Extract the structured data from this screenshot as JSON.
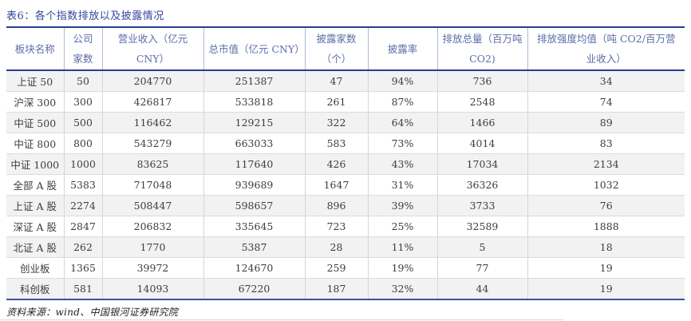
{
  "title": "表6：各个指数排放以及披露情况",
  "table": {
    "columns": [
      {
        "label": "板块名称"
      },
      {
        "label": "公司家数"
      },
      {
        "label": "营业收入（亿元 CNY）"
      },
      {
        "label": "总市值（亿元 CNY）"
      },
      {
        "label": "披露家数（个）"
      },
      {
        "label": "披露率"
      },
      {
        "label": "排放总量（百万吨 CO2)"
      },
      {
        "label": "排放强度均值（吨 CO2/百万营业收入）"
      }
    ],
    "rows": [
      [
        "上证 50",
        "50",
        "204770",
        "251387",
        "47",
        "94%",
        "736",
        "34"
      ],
      [
        "沪深 300",
        "300",
        "426817",
        "533818",
        "261",
        "87%",
        "2548",
        "74"
      ],
      [
        "中证 500",
        "500",
        "116462",
        "129215",
        "322",
        "64%",
        "1466",
        "89"
      ],
      [
        "中证 800",
        "800",
        "543279",
        "663033",
        "583",
        "73%",
        "4014",
        "83"
      ],
      [
        "中证 1000",
        "1000",
        "83625",
        "117640",
        "426",
        "43%",
        "17034",
        "2134"
      ],
      [
        "全部 A 股",
        "5383",
        "717048",
        "939689",
        "1647",
        "31%",
        "36326",
        "1032"
      ],
      [
        "上证 A 股",
        "2274",
        "508447",
        "598657",
        "896",
        "39%",
        "3733",
        "76"
      ],
      [
        "深证 A 股",
        "2847",
        "206832",
        "335645",
        "723",
        "25%",
        "32589",
        "1888"
      ],
      [
        "北证 A 股",
        "262",
        "1770",
        "5387",
        "28",
        "11%",
        "5",
        "18"
      ],
      [
        "创业板",
        "1365",
        "39972",
        "124670",
        "259",
        "19%",
        "77",
        "19"
      ],
      [
        "科创板",
        "581",
        "14093",
        "67220",
        "187",
        "32%",
        "44",
        "19"
      ]
    ]
  },
  "footer": {
    "source": "资料来源：wind、中国银河证券研究院"
  },
  "colors": {
    "title_text": "#33479c",
    "header_text": "#5b6da8",
    "body_text": "#3d3d3d",
    "rule_dark_blue": "#2b3c92",
    "rule_bottom_blue": "#3d519f",
    "stripe": "#f2f2f2"
  }
}
